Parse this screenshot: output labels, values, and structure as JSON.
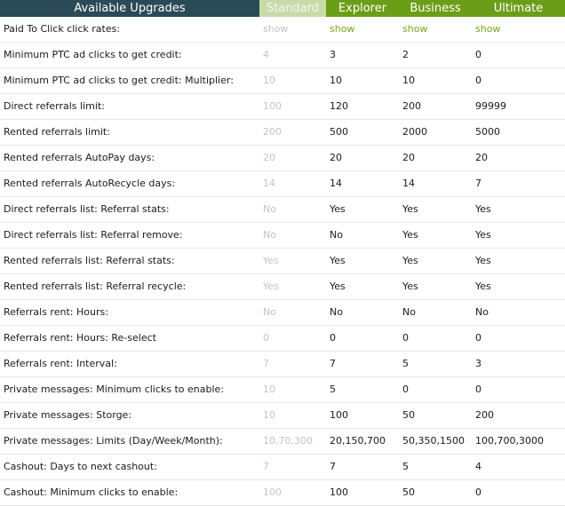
{
  "header": {
    "title": "Available Upgrades",
    "plans": [
      "Standard",
      "Explorer",
      "Business",
      "Ultimate"
    ]
  },
  "rows": [
    {
      "label": "Paid To Click click rates:",
      "values": [
        "show",
        "show",
        "show",
        "show"
      ]
    },
    {
      "label": "Minimum PTC ad clicks to get credit:",
      "values": [
        "4",
        "3",
        "2",
        "0"
      ]
    },
    {
      "label": "Minimum PTC ad clicks to get credit: Multiplier:",
      "values": [
        "10",
        "10",
        "10",
        "0"
      ]
    },
    {
      "label": "Direct referrals limit:",
      "values": [
        "100",
        "120",
        "200",
        "99999"
      ]
    },
    {
      "label": "Rented referrals limit:",
      "values": [
        "200",
        "500",
        "2000",
        "5000"
      ]
    },
    {
      "label": "Rented referrals AutoPay days:",
      "values": [
        "20",
        "20",
        "20",
        "20"
      ]
    },
    {
      "label": "Rented referrals AutoRecycle days:",
      "values": [
        "14",
        "14",
        "14",
        "7"
      ]
    },
    {
      "label": "Direct referrals list: Referral stats:",
      "values": [
        "No",
        "Yes",
        "Yes",
        "Yes"
      ]
    },
    {
      "label": "Direct referrals list: Referral remove:",
      "values": [
        "No",
        "No",
        "Yes",
        "Yes"
      ]
    },
    {
      "label": "Rented referrals list: Referral stats:",
      "values": [
        "Yes",
        "Yes",
        "Yes",
        "Yes"
      ]
    },
    {
      "label": "Rented referrals list: Referral recycle:",
      "values": [
        "Yes",
        "Yes",
        "Yes",
        "Yes"
      ]
    },
    {
      "label": "Referrals rent: Hours:",
      "values": [
        "No",
        "No",
        "No",
        "No"
      ]
    },
    {
      "label": "Referrals rent: Hours: Re-select",
      "values": [
        "0",
        "0",
        "0",
        "0"
      ]
    },
    {
      "label": "Referrals rent: Interval:",
      "values": [
        "7",
        "7",
        "5",
        "3"
      ]
    },
    {
      "label": "Private messages: Minimum clicks to enable:",
      "values": [
        "10",
        "5",
        "0",
        "0"
      ]
    },
    {
      "label": "Private messages: Storge:",
      "values": [
        "10",
        "100",
        "50",
        "200"
      ]
    },
    {
      "label": "Private messages: Limits (Day/Week/Month):",
      "values": [
        "10,70,300",
        "20,150,700",
        "50,350,1500",
        "100,700,3000"
      ]
    },
    {
      "label": "Cashout: Days to next cashout:",
      "values": [
        "7",
        "7",
        "5",
        "4"
      ]
    },
    {
      "label": "Cashout: Minimum clicks to enable:",
      "values": [
        "100",
        "100",
        "50",
        "0"
      ]
    }
  ],
  "colors": {
    "title_bg": "#2a4a57",
    "standard_bg": "#c8dba9",
    "plan_bg": "#6b9e17",
    "show_link": "#79a51c",
    "standard_text": "#c3c3c3"
  }
}
